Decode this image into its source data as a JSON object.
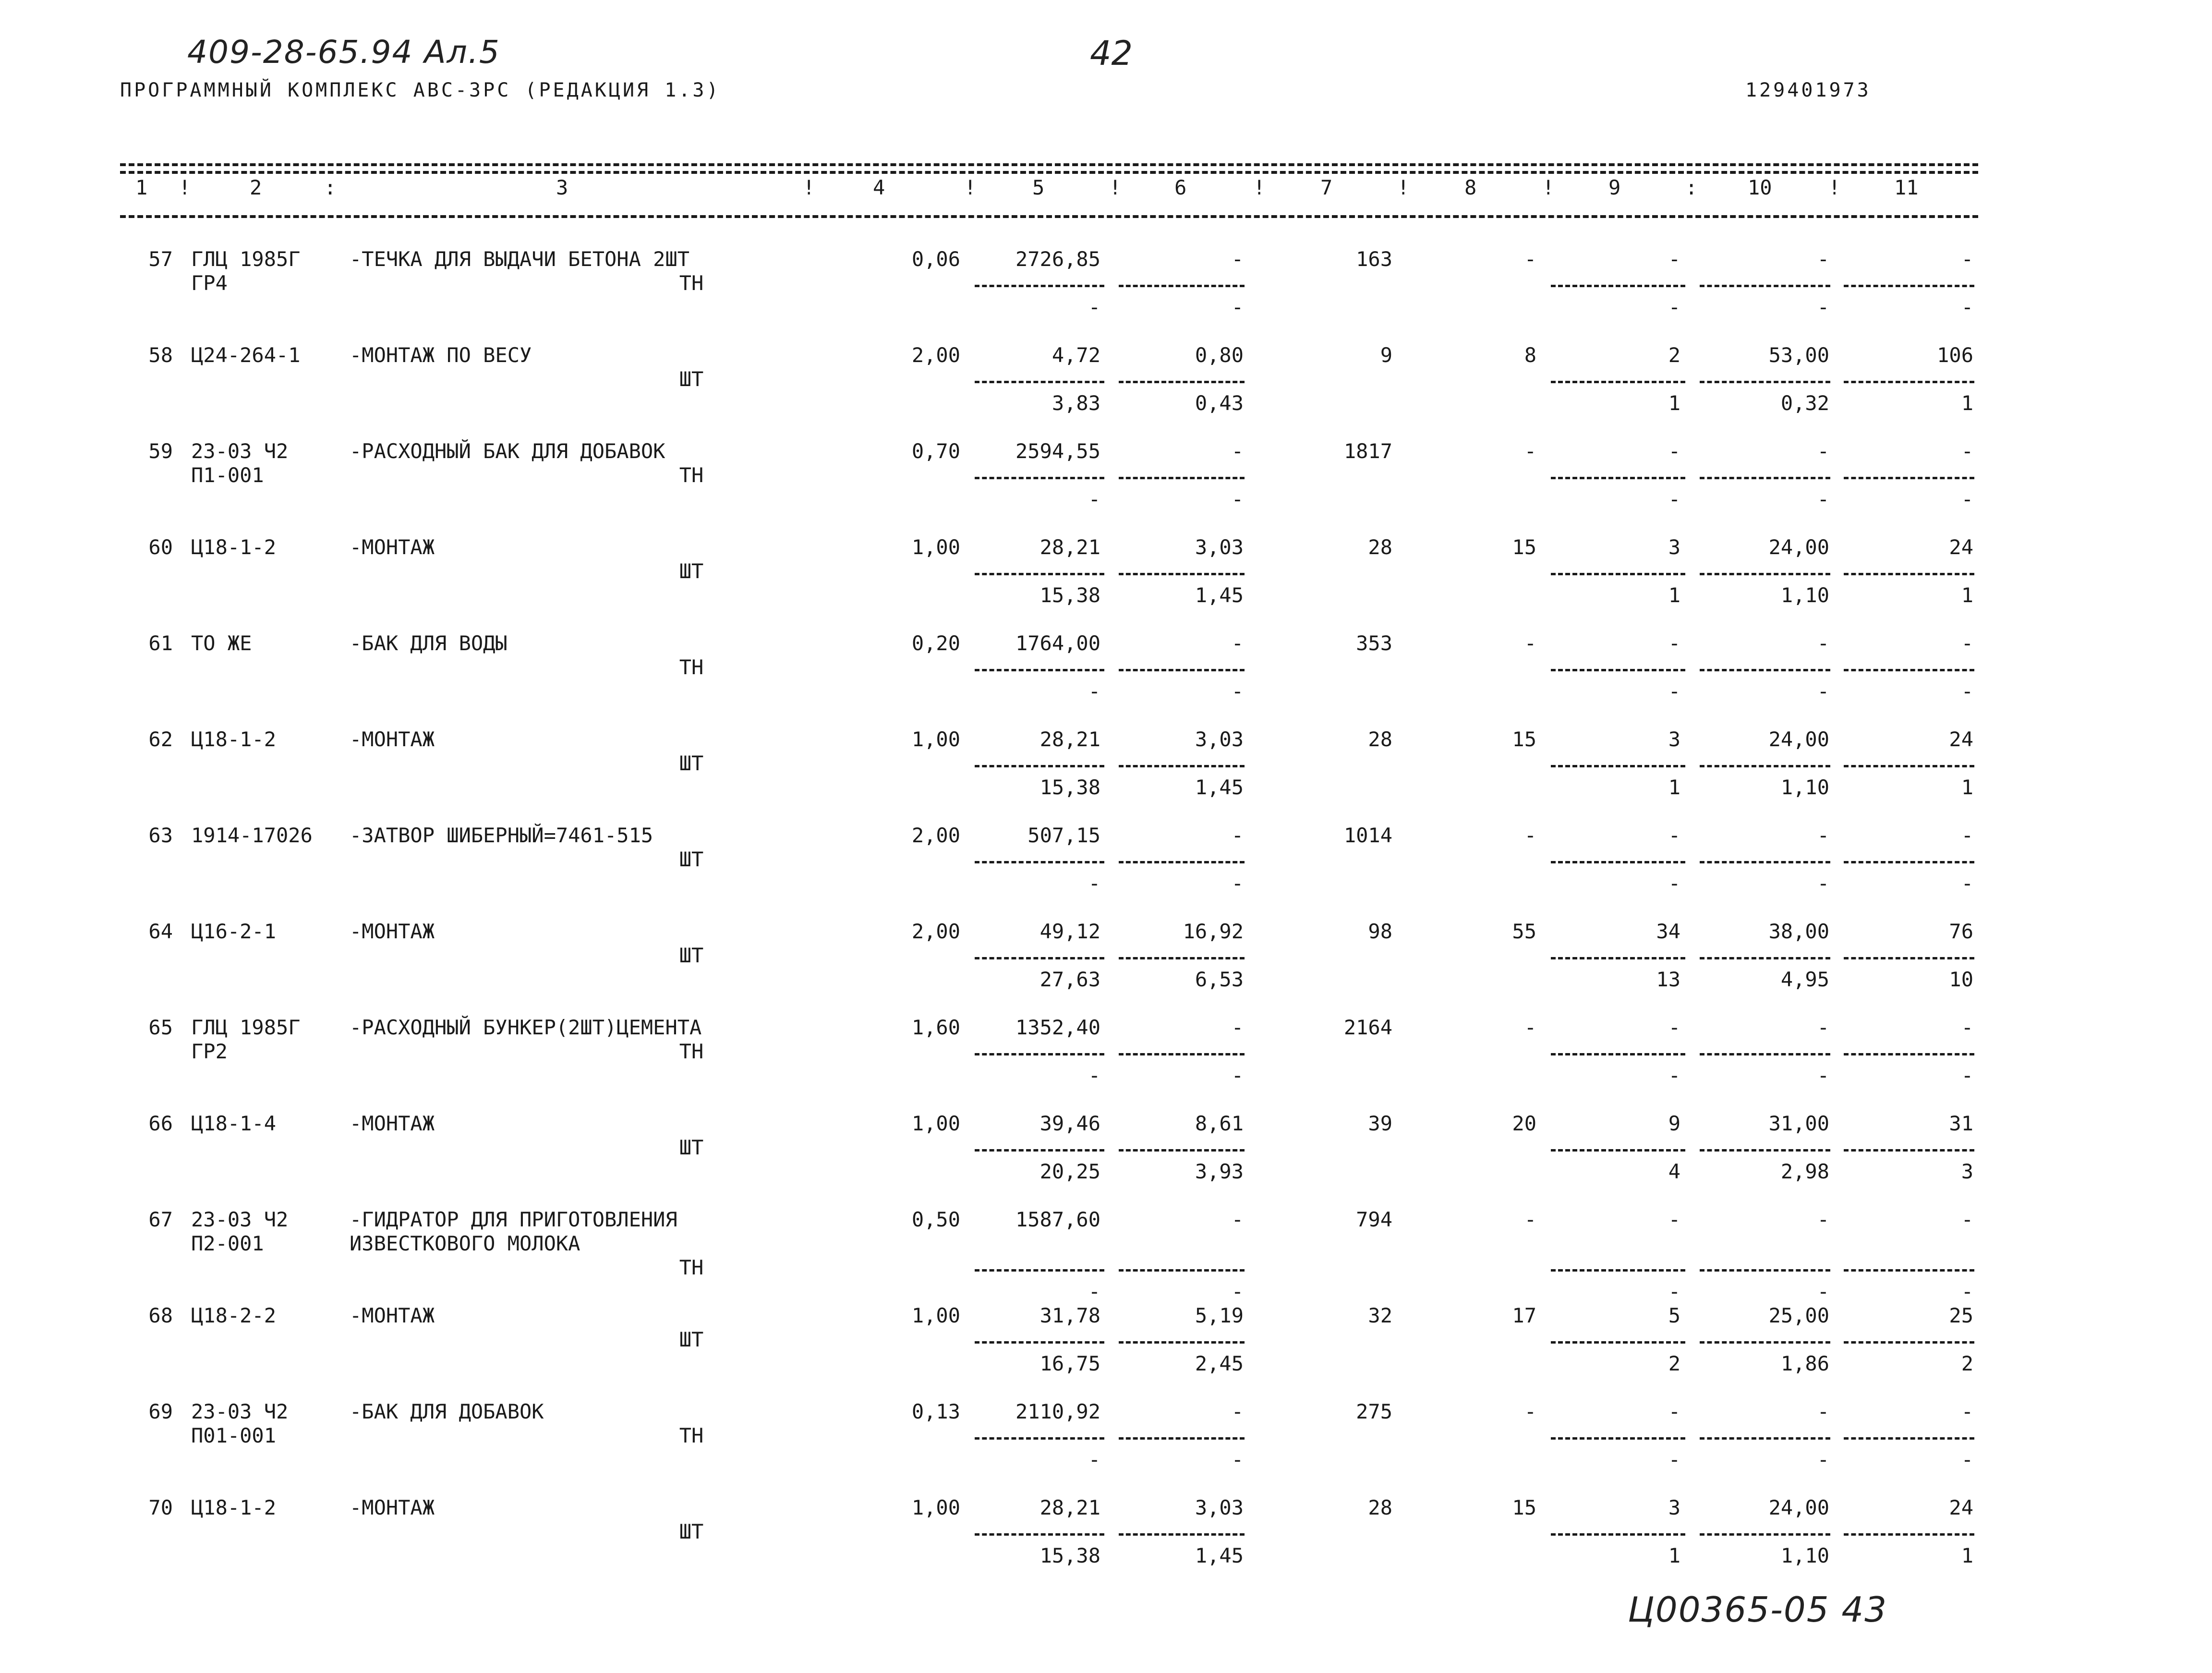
{
  "handwritten": {
    "code": "409-28-65.94 Ал.5",
    "page_number": "42",
    "footer": "Ц00365-05  43"
  },
  "header": {
    "program": "ПРОГРАММНЫЙ КОМПЛЕКС АВС-3РС (РЕДАКЦИЯ 1.3)",
    "doc_number": "129401973"
  },
  "columns": [
    "1",
    "2",
    "3",
    "4",
    "5",
    "6",
    "7",
    "8",
    "9",
    "10",
    "11"
  ],
  "rows": [
    {
      "no": "57",
      "code1": "ГЛЦ 1985Г",
      "code2": "ГР4",
      "name": "-ТЕЧКА ДЛЯ ВЫДАЧИ БЕТОНА 2ШТ",
      "name2": "",
      "unit": "ТН",
      "qty": "0,06",
      "c5": "2726,85",
      "c5b": "-",
      "c6": "-",
      "c6b": "-",
      "c7": "163",
      "c8": "-",
      "c9": "-",
      "c9b": "-",
      "c10": "-",
      "c10b": "-",
      "c11": "-",
      "c11b": "-"
    },
    {
      "no": "58",
      "code1": "Ц24-264-1",
      "code2": "",
      "name": "-МОНТАЖ ПО ВЕСУ",
      "name2": "",
      "unit": "ШТ",
      "qty": "2,00",
      "c5": "4,72",
      "c5b": "3,83",
      "c6": "0,80",
      "c6b": "0,43",
      "c7": "9",
      "c8": "8",
      "c9": "2",
      "c9b": "1",
      "c10": "53,00",
      "c10b": "0,32",
      "c11": "106",
      "c11b": "1"
    },
    {
      "no": "59",
      "code1": "23-03 Ч2",
      "code2": "П1-001",
      "name": "-РАСХОДНЫЙ БАК ДЛЯ ДОБАВОК",
      "name2": "",
      "unit": "ТН",
      "qty": "0,70",
      "c5": "2594,55",
      "c5b": "-",
      "c6": "-",
      "c6b": "-",
      "c7": "1817",
      "c8": "-",
      "c9": "-",
      "c9b": "-",
      "c10": "-",
      "c10b": "-",
      "c11": "-",
      "c11b": "-"
    },
    {
      "no": "60",
      "code1": "Ц18-1-2",
      "code2": "",
      "name": "-МОНТАЖ",
      "name2": "",
      "unit": "ШТ",
      "qty": "1,00",
      "c5": "28,21",
      "c5b": "15,38",
      "c6": "3,03",
      "c6b": "1,45",
      "c7": "28",
      "c8": "15",
      "c9": "3",
      "c9b": "1",
      "c10": "24,00",
      "c10b": "1,10",
      "c11": "24",
      "c11b": "1"
    },
    {
      "no": "61",
      "code1": "ТО ЖЕ",
      "code2": "",
      "name": "-БАК ДЛЯ ВОДЫ",
      "name2": "",
      "unit": "ТН",
      "qty": "0,20",
      "c5": "1764,00",
      "c5b": "-",
      "c6": "-",
      "c6b": "-",
      "c7": "353",
      "c8": "-",
      "c9": "-",
      "c9b": "-",
      "c10": "-",
      "c10b": "-",
      "c11": "-",
      "c11b": "-"
    },
    {
      "no": "62",
      "code1": "Ц18-1-2",
      "code2": "",
      "name": "-МОНТАЖ",
      "name2": "",
      "unit": "ШТ",
      "qty": "1,00",
      "c5": "28,21",
      "c5b": "15,38",
      "c6": "3,03",
      "c6b": "1,45",
      "c7": "28",
      "c8": "15",
      "c9": "3",
      "c9b": "1",
      "c10": "24,00",
      "c10b": "1,10",
      "c11": "24",
      "c11b": "1"
    },
    {
      "no": "63",
      "code1": "1914-17026",
      "code2": "",
      "name": "-ЗАТВОР ШИБЕРНЫЙ=7461-515",
      "name2": "",
      "unit": "ШТ",
      "qty": "2,00",
      "c5": "507,15",
      "c5b": "-",
      "c6": "-",
      "c6b": "-",
      "c7": "1014",
      "c8": "-",
      "c9": "-",
      "c9b": "-",
      "c10": "-",
      "c10b": "-",
      "c11": "-",
      "c11b": "-"
    },
    {
      "no": "64",
      "code1": "Ц16-2-1",
      "code2": "",
      "name": "-МОНТАЖ",
      "name2": "",
      "unit": "ШТ",
      "qty": "2,00",
      "c5": "49,12",
      "c5b": "27,63",
      "c6": "16,92",
      "c6b": "6,53",
      "c7": "98",
      "c8": "55",
      "c9": "34",
      "c9b": "13",
      "c10": "38,00",
      "c10b": "4,95",
      "c11": "76",
      "c11b": "10"
    },
    {
      "no": "65",
      "code1": "ГЛЦ 1985Г",
      "code2": "ГР2",
      "name": "-РАСХОДНЫЙ БУНКЕР(2ШТ)ЦЕМЕНТА",
      "name2": "",
      "unit": "ТН",
      "qty": "1,60",
      "c5": "1352,40",
      "c5b": "-",
      "c6": "-",
      "c6b": "-",
      "c7": "2164",
      "c8": "-",
      "c9": "-",
      "c9b": "-",
      "c10": "-",
      "c10b": "-",
      "c11": "-",
      "c11b": "-"
    },
    {
      "no": "66",
      "code1": "Ц18-1-4",
      "code2": "",
      "name": "-МОНТАЖ",
      "name2": "",
      "unit": "ШТ",
      "qty": "1,00",
      "c5": "39,46",
      "c5b": "20,25",
      "c6": "8,61",
      "c6b": "3,93",
      "c7": "39",
      "c8": "20",
      "c9": "9",
      "c9b": "4",
      "c10": "31,00",
      "c10b": "2,98",
      "c11": "31",
      "c11b": "3"
    },
    {
      "no": "67",
      "code1": "23-03 Ч2",
      "code2": "П2-001",
      "name": "-ГИДРАТОР ДЛЯ ПРИГОТОВЛЕНИЯ",
      "name2": "ИЗВЕСТКОВОГО МОЛОКА",
      "unit": "ТН",
      "qty": "0,50",
      "c5": "1587,60",
      "c5b": "-",
      "c6": "-",
      "c6b": "-",
      "c7": "794",
      "c8": "-",
      "c9": "-",
      "c9b": "-",
      "c10": "-",
      "c10b": "-",
      "c11": "-",
      "c11b": "-"
    },
    {
      "no": "68",
      "code1": "Ц18-2-2",
      "code2": "",
      "name": "-МОНТАЖ",
      "name2": "",
      "unit": "ШТ",
      "qty": "1,00",
      "c5": "31,78",
      "c5b": "16,75",
      "c6": "5,19",
      "c6b": "2,45",
      "c7": "32",
      "c8": "17",
      "c9": "5",
      "c9b": "2",
      "c10": "25,00",
      "c10b": "1,86",
      "c11": "25",
      "c11b": "2"
    },
    {
      "no": "69",
      "code1": "23-03 Ч2",
      "code2": "П01-001",
      "name": "-БАК ДЛЯ ДОБАВОК",
      "name2": "",
      "unit": "ТН",
      "qty": "0,13",
      "c5": "2110,92",
      "c5b": "-",
      "c6": "-",
      "c6b": "-",
      "c7": "275",
      "c8": "-",
      "c9": "-",
      "c9b": "-",
      "c10": "-",
      "c10b": "-",
      "c11": "-",
      "c11b": "-"
    },
    {
      "no": "70",
      "code1": "Ц18-1-2",
      "code2": "",
      "name": "-МОНТАЖ",
      "name2": "",
      "unit": "ШТ",
      "qty": "1,00",
      "c5": "28,21",
      "c5b": "15,38",
      "c6": "3,03",
      "c6b": "1,45",
      "c7": "28",
      "c8": "15",
      "c9": "3",
      "c9b": "1",
      "c10": "24,00",
      "c10b": "1,10",
      "c11": "24",
      "c11b": "1"
    }
  ]
}
